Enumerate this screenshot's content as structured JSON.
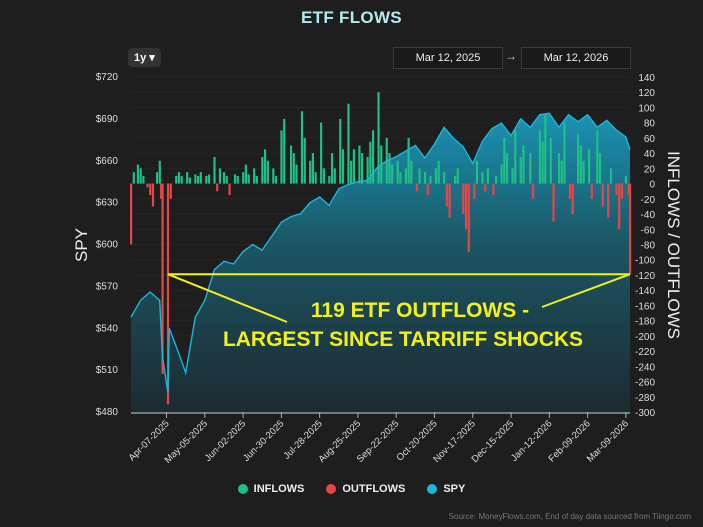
{
  "title": "ETF FLOWS",
  "controls": {
    "range": "1y ▾",
    "start_date": "Mar 12, 2025",
    "arrow": "→",
    "end_date": "Mar 12, 2026"
  },
  "source": "Source: MoneyFlows.com, End of day data sourced from Tiingo.com",
  "colors": {
    "inflows": "#1fbf85",
    "outflows": "#e84545",
    "spy": "#1ab6dc",
    "annotation": "#f2f21a",
    "background": "#1e1e1e"
  },
  "chart_data": {
    "type": "bar+area",
    "title": "ETF FLOWS",
    "ylabel_left": "SPY",
    "ylabel_right": "INFLOWS / OUTFLOWS",
    "ylim_left": [
      480,
      720
    ],
    "ylim_right": [
      -300,
      140
    ],
    "xlim": [
      "2025-03-12",
      "2026-03-12"
    ],
    "left_ticks": [
      "$720",
      "$690",
      "$660",
      "$630",
      "$600",
      "$570",
      "$540",
      "$510",
      "$480"
    ],
    "right_ticks": [
      140,
      120,
      100,
      80,
      60,
      40,
      20,
      0,
      -20,
      -40,
      -60,
      -80,
      -100,
      -120,
      -140,
      -160,
      -180,
      -200,
      -220,
      -240,
      -260,
      -280,
      -300
    ],
    "x_ticks": [
      "Apr-07-2025",
      "May-05-2025",
      "Jun-02-2025",
      "Jun-30-2025",
      "Jul-28-2025",
      "Aug-25-2025",
      "Sep-22-2025",
      "Oct-20-2025",
      "Nov-17-2025",
      "Dec-15-2025",
      "Jan-12-2026",
      "Feb-09-2026",
      "Mar-09-2026"
    ],
    "legend": [
      {
        "name": "INFLOWS",
        "color": "#1fbf85"
      },
      {
        "name": "OUTFLOWS",
        "color": "#e84545"
      },
      {
        "name": "SPY",
        "color": "#1ab6dc"
      }
    ],
    "legend_position": "bottom",
    "annotation": {
      "lines": [
        "119 ETF OUTFLOWS -",
        "LARGEST SINCE TARRIFF SHOCKS"
      ],
      "level": -119
    },
    "spy": [
      [
        "2025-03-12",
        548
      ],
      [
        "2025-03-19",
        560
      ],
      [
        "2025-03-26",
        566
      ],
      [
        "2025-04-02",
        560
      ],
      [
        "2025-04-04",
        520
      ],
      [
        "2025-04-08",
        494
      ],
      [
        "2025-04-09",
        540
      ],
      [
        "2025-04-16",
        522
      ],
      [
        "2025-04-21",
        508
      ],
      [
        "2025-04-28",
        548
      ],
      [
        "2025-05-05",
        560
      ],
      [
        "2025-05-12",
        582
      ],
      [
        "2025-05-19",
        588
      ],
      [
        "2025-05-26",
        586
      ],
      [
        "2025-06-02",
        595
      ],
      [
        "2025-06-09",
        600
      ],
      [
        "2025-06-16",
        596
      ],
      [
        "2025-06-23",
        606
      ],
      [
        "2025-06-30",
        616
      ],
      [
        "2025-07-07",
        620
      ],
      [
        "2025-07-14",
        622
      ],
      [
        "2025-07-21",
        630
      ],
      [
        "2025-07-28",
        634
      ],
      [
        "2025-08-04",
        628
      ],
      [
        "2025-08-11",
        640
      ],
      [
        "2025-08-18",
        643
      ],
      [
        "2025-08-25",
        645
      ],
      [
        "2025-09-01",
        646
      ],
      [
        "2025-09-08",
        655
      ],
      [
        "2025-09-15",
        660
      ],
      [
        "2025-09-22",
        663
      ],
      [
        "2025-09-29",
        667
      ],
      [
        "2025-10-06",
        671
      ],
      [
        "2025-10-13",
        662
      ],
      [
        "2025-10-20",
        672
      ],
      [
        "2025-10-27",
        684
      ],
      [
        "2025-11-03",
        676
      ],
      [
        "2025-11-10",
        670
      ],
      [
        "2025-11-17",
        658
      ],
      [
        "2025-11-24",
        674
      ],
      [
        "2025-12-01",
        683
      ],
      [
        "2025-12-08",
        687
      ],
      [
        "2025-12-15",
        678
      ],
      [
        "2025-12-22",
        690
      ],
      [
        "2025-12-29",
        684
      ],
      [
        "2026-01-05",
        693
      ],
      [
        "2026-01-12",
        694
      ],
      [
        "2026-01-19",
        684
      ],
      [
        "2026-01-26",
        693
      ],
      [
        "2026-02-02",
        688
      ],
      [
        "2026-02-09",
        693
      ],
      [
        "2026-02-16",
        684
      ],
      [
        "2026-02-23",
        689
      ],
      [
        "2026-03-02",
        682
      ],
      [
        "2026-03-09",
        677
      ],
      [
        "2026-03-12",
        668
      ]
    ],
    "flows": [
      [
        "2025-03-12",
        -80
      ],
      [
        "2025-03-14",
        15
      ],
      [
        "2025-03-17",
        25
      ],
      [
        "2025-03-19",
        20
      ],
      [
        "2025-03-21",
        10
      ],
      [
        "2025-03-24",
        -5
      ],
      [
        "2025-03-26",
        -15
      ],
      [
        "2025-03-28",
        -30
      ],
      [
        "2025-03-31",
        15
      ],
      [
        "2025-04-02",
        30
      ],
      [
        "2025-04-03",
        -20
      ],
      [
        "2025-04-04",
        -250
      ],
      [
        "2025-04-08",
        -290
      ],
      [
        "2025-04-10",
        -20
      ],
      [
        "2025-04-14",
        10
      ],
      [
        "2025-04-16",
        15
      ],
      [
        "2025-04-18",
        10
      ],
      [
        "2025-04-22",
        15
      ],
      [
        "2025-04-24",
        8
      ],
      [
        "2025-04-28",
        12
      ],
      [
        "2025-04-30",
        10
      ],
      [
        "2025-05-02",
        15
      ],
      [
        "2025-05-06",
        10
      ],
      [
        "2025-05-08",
        12
      ],
      [
        "2025-05-12",
        35
      ],
      [
        "2025-05-14",
        -10
      ],
      [
        "2025-05-16",
        20
      ],
      [
        "2025-05-19",
        15
      ],
      [
        "2025-05-21",
        10
      ],
      [
        "2025-05-23",
        -15
      ],
      [
        "2025-05-27",
        12
      ],
      [
        "2025-05-29",
        10
      ],
      [
        "2025-06-02",
        15
      ],
      [
        "2025-06-04",
        25
      ],
      [
        "2025-06-06",
        12
      ],
      [
        "2025-06-10",
        20
      ],
      [
        "2025-06-12",
        10
      ],
      [
        "2025-06-16",
        35
      ],
      [
        "2025-06-18",
        45
      ],
      [
        "2025-06-20",
        30
      ],
      [
        "2025-06-24",
        20
      ],
      [
        "2025-06-26",
        10
      ],
      [
        "2025-06-30",
        70
      ],
      [
        "2025-07-02",
        85
      ],
      [
        "2025-07-07",
        50
      ],
      [
        "2025-07-09",
        40
      ],
      [
        "2025-07-11",
        25
      ],
      [
        "2025-07-15",
        95
      ],
      [
        "2025-07-17",
        60
      ],
      [
        "2025-07-21",
        30
      ],
      [
        "2025-07-23",
        40
      ],
      [
        "2025-07-25",
        15
      ],
      [
        "2025-07-29",
        80
      ],
      [
        "2025-07-31",
        20
      ],
      [
        "2025-08-04",
        10
      ],
      [
        "2025-08-06",
        40
      ],
      [
        "2025-08-08",
        20
      ],
      [
        "2025-08-12",
        85
      ],
      [
        "2025-08-14",
        45
      ],
      [
        "2025-08-18",
        105
      ],
      [
        "2025-08-20",
        30
      ],
      [
        "2025-08-22",
        45
      ],
      [
        "2025-08-26",
        50
      ],
      [
        "2025-08-28",
        40
      ],
      [
        "2025-09-01",
        35
      ],
      [
        "2025-09-03",
        55
      ],
      [
        "2025-09-05",
        70
      ],
      [
        "2025-09-09",
        120
      ],
      [
        "2025-09-11",
        50
      ],
      [
        "2025-09-15",
        60
      ],
      [
        "2025-09-17",
        40
      ],
      [
        "2025-09-19",
        25
      ],
      [
        "2025-09-23",
        30
      ],
      [
        "2025-09-25",
        15
      ],
      [
        "2025-09-29",
        20
      ],
      [
        "2025-10-01",
        60
      ],
      [
        "2025-10-03",
        30
      ],
      [
        "2025-10-07",
        -10
      ],
      [
        "2025-10-09",
        20
      ],
      [
        "2025-10-13",
        15
      ],
      [
        "2025-10-15",
        -15
      ],
      [
        "2025-10-17",
        10
      ],
      [
        "2025-10-21",
        20
      ],
      [
        "2025-10-23",
        30
      ],
      [
        "2025-10-27",
        15
      ],
      [
        "2025-10-29",
        -30
      ],
      [
        "2025-10-31",
        -45
      ],
      [
        "2025-11-04",
        10
      ],
      [
        "2025-11-06",
        20
      ],
      [
        "2025-11-10",
        -40
      ],
      [
        "2025-11-12",
        -60
      ],
      [
        "2025-11-14",
        -90
      ],
      [
        "2025-11-18",
        -20
      ],
      [
        "2025-11-20",
        30
      ],
      [
        "2025-11-24",
        15
      ],
      [
        "2025-11-26",
        -10
      ],
      [
        "2025-11-28",
        20
      ],
      [
        "2025-12-02",
        -15
      ],
      [
        "2025-12-04",
        10
      ],
      [
        "2025-12-08",
        25
      ],
      [
        "2025-12-10",
        60
      ],
      [
        "2025-12-12",
        40
      ],
      [
        "2025-12-16",
        20
      ],
      [
        "2025-12-18",
        70
      ],
      [
        "2025-12-22",
        35
      ],
      [
        "2025-12-24",
        50
      ],
      [
        "2025-12-29",
        40
      ],
      [
        "2025-12-31",
        -20
      ],
      [
        "2026-01-05",
        70
      ],
      [
        "2026-01-07",
        55
      ],
      [
        "2026-01-09",
        90
      ],
      [
        "2026-01-13",
        60
      ],
      [
        "2026-01-15",
        -50
      ],
      [
        "2026-01-19",
        40
      ],
      [
        "2026-01-21",
        30
      ],
      [
        "2026-01-23",
        80
      ],
      [
        "2026-01-27",
        -20
      ],
      [
        "2026-01-29",
        -40
      ],
      [
        "2026-02-02",
        65
      ],
      [
        "2026-02-04",
        50
      ],
      [
        "2026-02-06",
        30
      ],
      [
        "2026-02-10",
        45
      ],
      [
        "2026-02-12",
        -20
      ],
      [
        "2026-02-16",
        70
      ],
      [
        "2026-02-18",
        40
      ],
      [
        "2026-02-20",
        -30
      ],
      [
        "2026-02-24",
        -45
      ],
      [
        "2026-02-26",
        20
      ],
      [
        "2026-03-02",
        -15
      ],
      [
        "2026-03-04",
        -60
      ],
      [
        "2026-03-06",
        -20
      ],
      [
        "2026-03-09",
        10
      ],
      [
        "2026-03-11",
        -15
      ],
      [
        "2026-03-12",
        -119
      ]
    ]
  }
}
